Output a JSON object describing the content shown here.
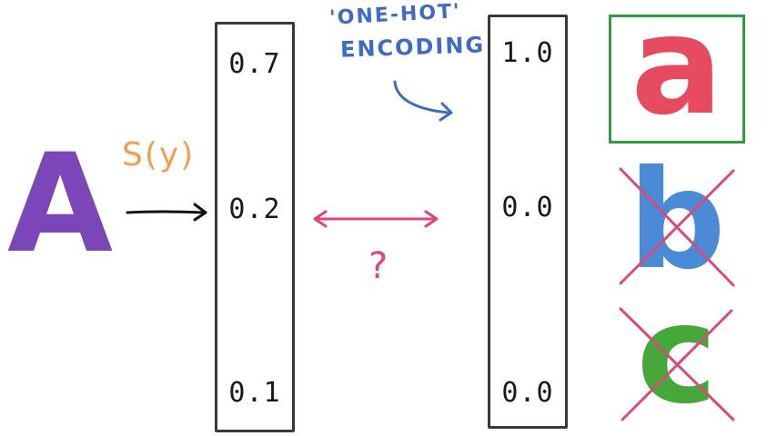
{
  "input": {
    "letter": "A",
    "color": "#7b46b8"
  },
  "function_label": {
    "text": "S(y)",
    "color": "#f0a050"
  },
  "scores_vector": {
    "values": [
      "0.7",
      "0.2",
      "0.1"
    ]
  },
  "one_hot_annotation": {
    "line1": "'ONE-HOT'",
    "line2": "ENCODING",
    "color": "#3e6bc4"
  },
  "comparison": {
    "mark": "?",
    "color": "#e0457a"
  },
  "one_hot_vector": {
    "values": [
      "1.0",
      "0.0",
      "0.0"
    ]
  },
  "classes": [
    {
      "letter": "a",
      "color": "#e64a5e",
      "selected": true,
      "selected_frame_color": "#2f9b47"
    },
    {
      "letter": "b",
      "color": "#4a8ad6",
      "crossed": true
    },
    {
      "letter": "c",
      "color": "#46a83a",
      "crossed": true
    }
  ],
  "cross_color": "#d94a78"
}
